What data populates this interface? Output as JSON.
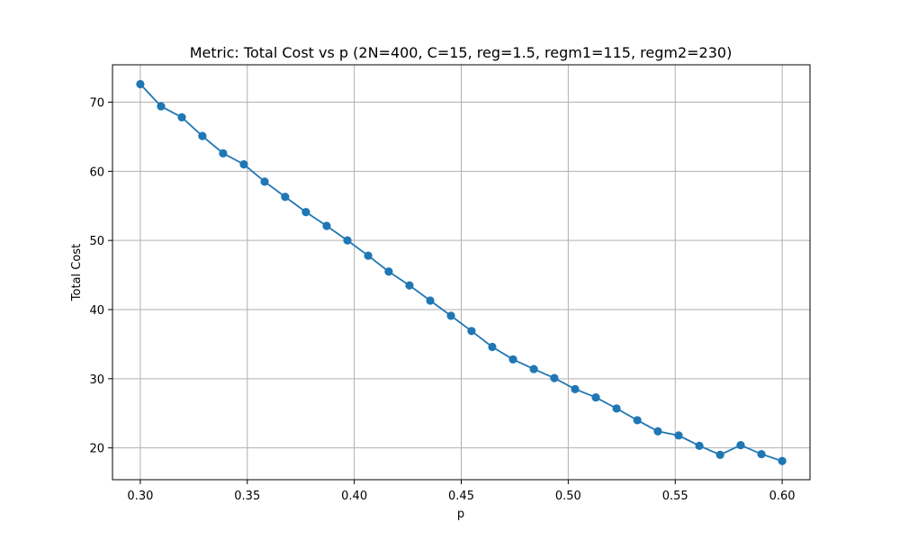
{
  "chart_data": {
    "type": "line",
    "title": "Metric: Total Cost vs p (2N=400, C=15, reg=1.5, regm1=115, regm2=230)",
    "xlabel": "p",
    "ylabel": "Total Cost",
    "xlim": [
      0.287,
      0.613
    ],
    "ylim": [
      15.4,
      75.4
    ],
    "xticks": [
      0.3,
      0.35,
      0.4,
      0.45,
      0.5,
      0.55,
      0.6
    ],
    "xtick_labels": [
      "0.30",
      "0.35",
      "0.40",
      "0.45",
      "0.50",
      "0.55",
      "0.60"
    ],
    "yticks": [
      20,
      30,
      40,
      50,
      60,
      70
    ],
    "ytick_labels": [
      "20",
      "30",
      "40",
      "50",
      "60",
      "70"
    ],
    "grid": true,
    "color": "#1f77b4",
    "marker": "circle",
    "series": [
      {
        "x": [
          0.3,
          0.3097,
          0.3194,
          0.329,
          0.3387,
          0.3484,
          0.3581,
          0.3677,
          0.3774,
          0.3871,
          0.3968,
          0.4065,
          0.4161,
          0.4258,
          0.4355,
          0.4452,
          0.4548,
          0.4645,
          0.4742,
          0.4839,
          0.4935,
          0.5032,
          0.5129,
          0.5226,
          0.5323,
          0.5419,
          0.5516,
          0.5613,
          0.571,
          0.5806,
          0.5903,
          0.6
        ],
        "y": [
          72.6,
          69.4,
          67.8,
          65.1,
          62.6,
          61.0,
          58.5,
          56.3,
          54.1,
          52.1,
          50.0,
          47.8,
          45.5,
          43.5,
          41.3,
          39.1,
          36.9,
          34.6,
          32.8,
          31.4,
          30.1,
          28.5,
          27.3,
          25.7,
          24.0,
          22.4,
          21.8,
          20.3,
          19.0,
          20.4,
          19.1,
          18.1
        ]
      }
    ]
  }
}
